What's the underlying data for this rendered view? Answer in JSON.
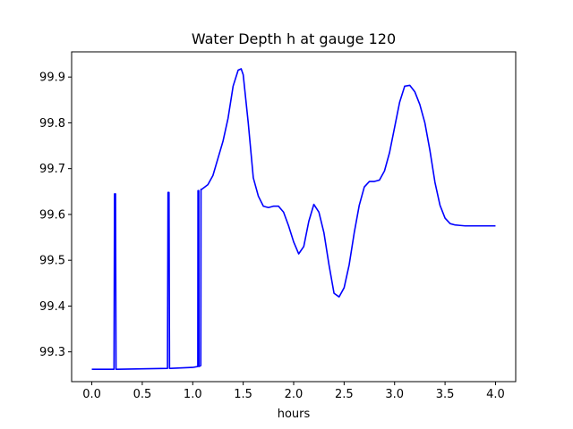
{
  "chart_data": {
    "type": "line",
    "title": "Water Depth h at gauge 120",
    "xlabel": "hours",
    "ylabel": "",
    "xlim": [
      -0.2,
      4.2
    ],
    "ylim": [
      99.235,
      99.955
    ],
    "xticks": [
      0.0,
      0.5,
      1.0,
      1.5,
      2.0,
      2.5,
      3.0,
      3.5,
      4.0
    ],
    "xtick_labels": [
      "0.0",
      "0.5",
      "1.0",
      "1.5",
      "2.0",
      "2.5",
      "3.0",
      "3.5",
      "4.0"
    ],
    "yticks": [
      99.3,
      99.4,
      99.5,
      99.6,
      99.7,
      99.8,
      99.9
    ],
    "ytick_labels": [
      "99.3",
      "99.4",
      "99.5",
      "99.6",
      "99.7",
      "99.8",
      "99.9"
    ],
    "grid": false,
    "series": [
      {
        "color": "#0000ff",
        "x": [
          0.0,
          0.22,
          0.225,
          0.235,
          0.24,
          0.25,
          0.75,
          0.755,
          0.765,
          0.77,
          0.78,
          1.0,
          1.05,
          1.052,
          1.06,
          1.062,
          1.08,
          1.082,
          1.09,
          1.15,
          1.2,
          1.3,
          1.35,
          1.4,
          1.45,
          1.48,
          1.5,
          1.55,
          1.6,
          1.65,
          1.7,
          1.75,
          1.8,
          1.85,
          1.9,
          1.95,
          2.0,
          2.05,
          2.1,
          2.15,
          2.2,
          2.25,
          2.3,
          2.35,
          2.4,
          2.45,
          2.5,
          2.55,
          2.6,
          2.65,
          2.7,
          2.75,
          2.8,
          2.85,
          2.9,
          2.95,
          3.0,
          3.05,
          3.1,
          3.15,
          3.2,
          3.25,
          3.3,
          3.35,
          3.4,
          3.45,
          3.5,
          3.55,
          3.6,
          3.65,
          3.7,
          3.75,
          3.8,
          3.85,
          3.9,
          3.95,
          4.0
        ],
        "y": [
          99.262,
          99.262,
          99.645,
          99.645,
          99.262,
          99.262,
          99.264,
          99.648,
          99.648,
          99.264,
          99.264,
          99.266,
          99.268,
          99.652,
          99.652,
          99.268,
          99.27,
          99.655,
          99.655,
          99.665,
          99.685,
          99.76,
          99.81,
          99.88,
          99.915,
          99.918,
          99.905,
          99.8,
          99.68,
          99.64,
          99.618,
          99.615,
          99.618,
          99.618,
          99.605,
          99.575,
          99.54,
          99.514,
          99.53,
          99.585,
          99.622,
          99.605,
          99.56,
          99.49,
          99.428,
          99.42,
          99.44,
          99.49,
          99.56,
          99.62,
          99.66,
          99.672,
          99.672,
          99.675,
          99.695,
          99.735,
          99.79,
          99.845,
          99.88,
          99.882,
          99.868,
          99.84,
          99.8,
          99.74,
          99.67,
          99.62,
          99.592,
          99.58,
          99.577,
          99.576,
          99.575,
          99.575,
          99.575,
          99.575,
          99.575,
          99.575,
          99.575
        ]
      }
    ]
  }
}
